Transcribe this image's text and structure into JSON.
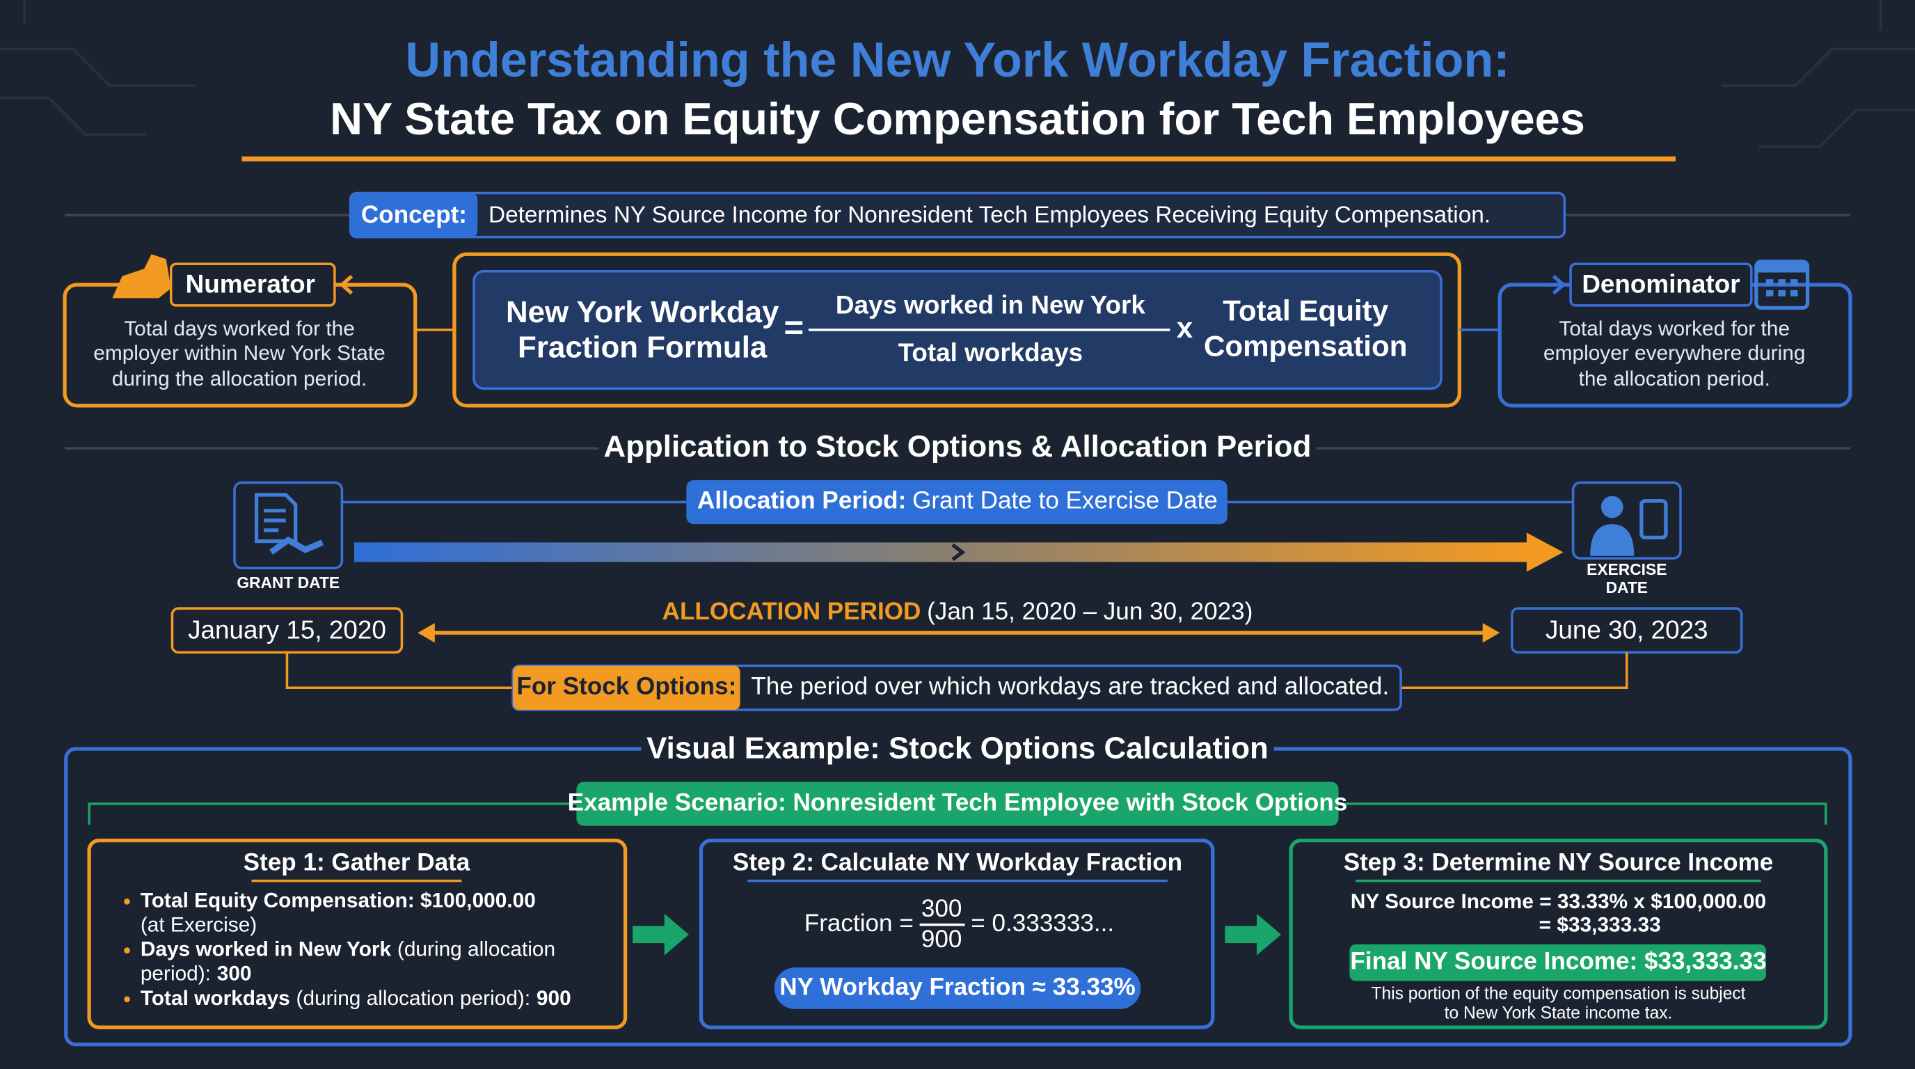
{
  "header": {
    "title_line1": "Understanding the New York Workday Fraction:",
    "title_line2": "NY State Tax on Equity Compensation for Tech Employees"
  },
  "concept": {
    "label": "Concept:",
    "text": "Determines NY Source Income for Nonresident Tech Employees Receiving Equity Compensation."
  },
  "numerator": {
    "title": "Numerator",
    "lines": [
      "Total days worked for the",
      "employer within New York State",
      "during the allocation period."
    ]
  },
  "formula": {
    "name_lines": [
      "New York Workday",
      "Fraction Formula"
    ],
    "equals": "=",
    "numerator": "Days worked in New York",
    "denominator": "Total workdays",
    "times": "x",
    "factor_lines": [
      "Total Equity",
      "Compensation"
    ]
  },
  "denominator": {
    "title": "Denominator",
    "lines": [
      "Total days worked for the",
      "employer everywhere during",
      "the allocation period."
    ]
  },
  "application": {
    "heading": "Application to Stock Options & Allocation Period",
    "allocation_label": "Allocation Period:",
    "allocation_text": "Grant Date to Exercise Date",
    "grant_label": "GRANT DATE",
    "exercise_label_lines": [
      "EXERCISE",
      "DATE"
    ],
    "grant_date": "January 15, 2020",
    "exercise_date": "June 30, 2023",
    "period_label": "ALLOCATION PERIOD",
    "period_range": "(Jan 15, 2020 – Jun 30, 2023)",
    "options_label": "For Stock Options:",
    "options_text": "The period over which workdays are tracked and allocated."
  },
  "example": {
    "heading": "Visual Example: Stock Options Calculation",
    "scenario": "Example Scenario: Nonresident Tech Employee with Stock Options",
    "step1": {
      "title": "Step 1: Gather Data",
      "bullets": [
        {
          "lines": [
            [
              {
                "text": "Total Equity Compensation: $100,000.00",
                "bold": true
              }
            ],
            [
              {
                "text": "(at Exercise)",
                "bold": false
              }
            ]
          ]
        },
        {
          "lines": [
            [
              {
                "text": "Days worked in New York",
                "bold": true
              },
              {
                "text": "(during allocation",
                "bold": false
              }
            ],
            [
              {
                "text": "period):",
                "bold": false
              },
              {
                "text": "300",
                "bold": true
              }
            ]
          ]
        },
        {
          "lines": [
            [
              {
                "text": "Total workdays",
                "bold": true
              },
              {
                "text": "(during allocation period):",
                "bold": false
              },
              {
                "text": "900",
                "bold": true
              }
            ]
          ]
        }
      ]
    },
    "step2": {
      "title": "Step 2: Calculate NY Workday Fraction",
      "lhs": "Fraction =",
      "num": "300",
      "den": "900",
      "result": "= 0.333333...",
      "pill": "NY Workday Fraction ≈ 33.33%"
    },
    "step3": {
      "title": "Step 3: Determine NY Source Income",
      "line1": "NY Source Income = 33.33% x $100,000.00",
      "line2": "= $33,333.33",
      "pill": "Final NY Source Income: $33,333.33",
      "note_lines": [
        "This portion of the equity compensation is subject",
        "to New York State income tax."
      ]
    }
  }
}
